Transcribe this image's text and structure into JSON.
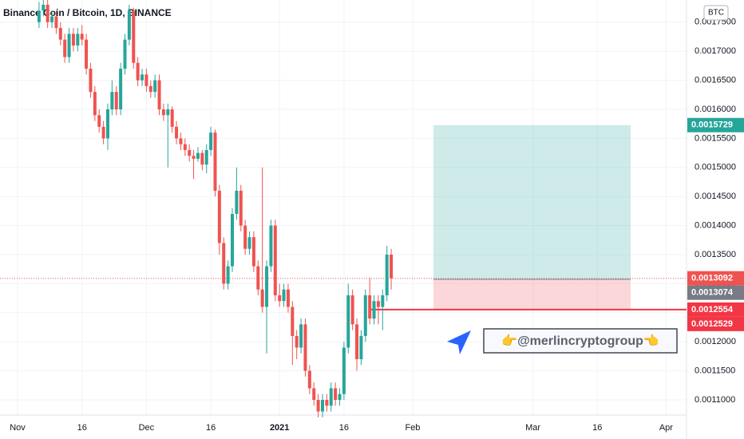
{
  "chart_data": {
    "type": "candlestick",
    "title": "Binance Coin / Bitcoin, 1D, BINANCE",
    "currency": "BTC",
    "up_color": "#26a69a",
    "down_color": "#ef5350",
    "grid": true,
    "x": [
      5,
      6,
      7,
      8,
      9,
      10,
      11,
      12,
      13,
      14,
      15,
      16,
      17,
      18,
      19,
      20,
      21,
      22,
      23,
      24,
      25,
      26,
      27,
      28,
      29,
      30,
      31,
      32,
      33,
      34,
      35,
      36,
      37,
      38,
      39,
      40,
      41,
      42,
      43,
      44,
      45,
      46,
      47,
      48,
      49,
      50,
      51,
      52,
      53,
      54,
      55,
      56,
      57,
      58,
      59,
      60,
      61,
      62,
      63,
      64,
      65,
      66,
      67,
      68,
      69,
      70,
      71,
      72,
      73,
      74,
      75,
      76,
      77,
      78,
      79,
      80,
      81,
      82,
      83,
      84,
      85,
      86,
      87
    ],
    "open": [
      0.00175,
      0.00177,
      0.00178,
      0.00175,
      0.00176,
      0.00174,
      0.00172,
      0.00169,
      0.00173,
      0.00171,
      0.00173,
      0.00172,
      0.00167,
      0.00163,
      0.00159,
      0.00157,
      0.00155,
      0.0016,
      0.00163,
      0.0016,
      0.00167,
      0.00172,
      0.00177,
      0.00168,
      0.00165,
      0.00166,
      0.00164,
      0.00163,
      0.00165,
      0.0016,
      0.00159,
      0.0016,
      0.00157,
      0.00155,
      0.00154,
      0.00153,
      0.00152,
      0.001515,
      0.001525,
      0.001505,
      0.00153,
      0.00156,
      0.00146,
      0.00137,
      0.0013,
      0.00133,
      0.00142,
      0.00146,
      0.0014,
      0.00136,
      0.00138,
      0.00133,
      0.00129,
      0.00126,
      0.00133,
      0.0014,
      0.00128,
      0.00127,
      0.00129,
      0.00126,
      0.00121,
      0.00119,
      0.00123,
      0.00115,
      0.00112,
      0.0011,
      0.00108,
      0.0011,
      0.00109,
      0.00112,
      0.0011,
      0.00111,
      0.00119,
      0.00128,
      0.00123,
      0.00117,
      0.00121,
      0.00128,
      0.00124,
      0.00127,
      0.00126,
      0.00128,
      0.00135
    ],
    "high": [
      0.001785,
      0.001795,
      0.00179,
      0.00177,
      0.00177,
      0.00175,
      0.00173,
      0.00174,
      0.00174,
      0.00174,
      0.001745,
      0.00173,
      0.00168,
      0.00164,
      0.0016,
      0.00158,
      0.00161,
      0.00165,
      0.00164,
      0.00168,
      0.00173,
      0.00178,
      0.001775,
      0.00169,
      0.00167,
      0.00167,
      0.00165,
      0.00166,
      0.00166,
      0.00161,
      0.00161,
      0.001605,
      0.00158,
      0.00156,
      0.00155,
      0.00154,
      0.00153,
      0.001535,
      0.00153,
      0.00154,
      0.00157,
      0.001565,
      0.00147,
      0.00138,
      0.00134,
      0.00143,
      0.0015,
      0.00147,
      0.00141,
      0.00139,
      0.00139,
      0.00134,
      0.0015,
      0.00134,
      0.00141,
      0.00141,
      0.0013,
      0.0013,
      0.0013,
      0.00127,
      0.00122,
      0.00124,
      0.00124,
      0.00116,
      0.00113,
      0.00111,
      0.00111,
      0.00111,
      0.00113,
      0.00113,
      0.00112,
      0.0012,
      0.0013,
      0.00129,
      0.00124,
      0.00122,
      0.00129,
      0.00131,
      0.00128,
      0.00128,
      0.00129,
      0.001365,
      0.00136
    ],
    "low": [
      0.00174,
      0.00176,
      0.00174,
      0.00174,
      0.00173,
      0.00171,
      0.00168,
      0.00168,
      0.0017,
      0.0017,
      0.00171,
      0.00166,
      0.00162,
      0.00158,
      0.00156,
      0.00154,
      0.00153,
      0.00159,
      0.00159,
      0.00159,
      0.00166,
      0.00171,
      0.00167,
      0.00164,
      0.00164,
      0.00163,
      0.00162,
      0.00162,
      0.00159,
      0.00158,
      0.0015,
      0.00156,
      0.00154,
      0.00153,
      0.00152,
      0.00151,
      0.00148,
      0.00151,
      0.001495,
      0.00149,
      0.00152,
      0.00145,
      0.00135,
      0.00129,
      0.00129,
      0.00132,
      0.00141,
      0.00139,
      0.00135,
      0.00135,
      0.00132,
      0.00128,
      0.00125,
      0.00118,
      0.00132,
      0.00127,
      0.00126,
      0.00126,
      0.00125,
      0.00116,
      0.00117,
      0.00118,
      0.00114,
      0.00111,
      0.00109,
      0.00107,
      0.00107,
      0.00108,
      0.00108,
      0.00109,
      0.00109,
      0.0011,
      0.00118,
      0.00122,
      0.00115,
      0.00116,
      0.0012,
      0.00123,
      0.00123,
      0.00123,
      0.00122,
      0.00127,
      0.00129
    ],
    "close": [
      0.00177,
      0.00178,
      0.00175,
      0.00176,
      0.00174,
      0.00172,
      0.00169,
      0.00173,
      0.00171,
      0.00173,
      0.00172,
      0.00167,
      0.00163,
      0.00159,
      0.00157,
      0.00155,
      0.0016,
      0.00163,
      0.0016,
      0.00167,
      0.00172,
      0.00177,
      0.00168,
      0.00165,
      0.00166,
      0.00164,
      0.00163,
      0.00165,
      0.0016,
      0.00159,
      0.0016,
      0.00157,
      0.00155,
      0.00154,
      0.00153,
      0.00152,
      0.001515,
      0.001525,
      0.001505,
      0.00153,
      0.00156,
      0.00146,
      0.00137,
      0.0013,
      0.00133,
      0.00142,
      0.00146,
      0.0014,
      0.00136,
      0.00138,
      0.00133,
      0.00129,
      0.00126,
      0.00133,
      0.0014,
      0.00128,
      0.00127,
      0.00129,
      0.00126,
      0.00121,
      0.00119,
      0.00123,
      0.00115,
      0.00112,
      0.0011,
      0.00108,
      0.0011,
      0.00109,
      0.00112,
      0.0011,
      0.00111,
      0.00119,
      0.00128,
      0.00123,
      0.00117,
      0.00121,
      0.00128,
      0.00124,
      0.00127,
      0.00126,
      0.00128,
      0.00135,
      0.0013092
    ],
    "xlim": [
      -4.09,
      155.76
    ],
    "xticks": [
      {
        "value": 0,
        "label": "Nov"
      },
      {
        "value": 15,
        "label": "16"
      },
      {
        "value": 30,
        "label": "Dec"
      },
      {
        "value": 45,
        "label": "16"
      },
      {
        "value": 61,
        "label": "2021"
      },
      {
        "value": 76,
        "label": "16"
      },
      {
        "value": 92,
        "label": "Feb"
      },
      {
        "value": 120,
        "label": "Mar"
      },
      {
        "value": 135,
        "label": "16"
      },
      {
        "value": 151,
        "label": "Apr"
      }
    ],
    "ylim": [
      0.0010739,
      0.0017882
    ],
    "yticks": [
      {
        "value": 0.0011,
        "label": "0.0011000"
      },
      {
        "value": 0.00115,
        "label": "0.0011500"
      },
      {
        "value": 0.0012,
        "label": "0.0012000"
      },
      {
        "value": 0.00125,
        "label": "0.0012500"
      },
      {
        "value": 0.0013,
        "label": "0.0013000"
      },
      {
        "value": 0.00135,
        "label": "0.0013500"
      },
      {
        "value": 0.0014,
        "label": "0.0014000"
      },
      {
        "value": 0.00145,
        "label": "0.0014500"
      },
      {
        "value": 0.0015,
        "label": "0.0015000"
      },
      {
        "value": 0.00155,
        "label": "0.0015500"
      },
      {
        "value": 0.0016,
        "label": "0.0016000"
      },
      {
        "value": 0.00165,
        "label": "0.0016500"
      },
      {
        "value": 0.0017,
        "label": "0.0017000"
      },
      {
        "value": 0.00175,
        "label": "0.0017500"
      }
    ],
    "position": {
      "target": 0.0015729,
      "entry": 0.0013074,
      "stop": 0.0012554,
      "profit_color": "#26a69a",
      "loss_color": "#f23645",
      "entry_color": "#787b86"
    },
    "last_price": {
      "value": 0.0013092,
      "color": "#ef5350"
    },
    "alert_price": {
      "value": 0.0012529,
      "color": "#f23645"
    },
    "watermark": "👉@merlincryptogroup👈"
  }
}
